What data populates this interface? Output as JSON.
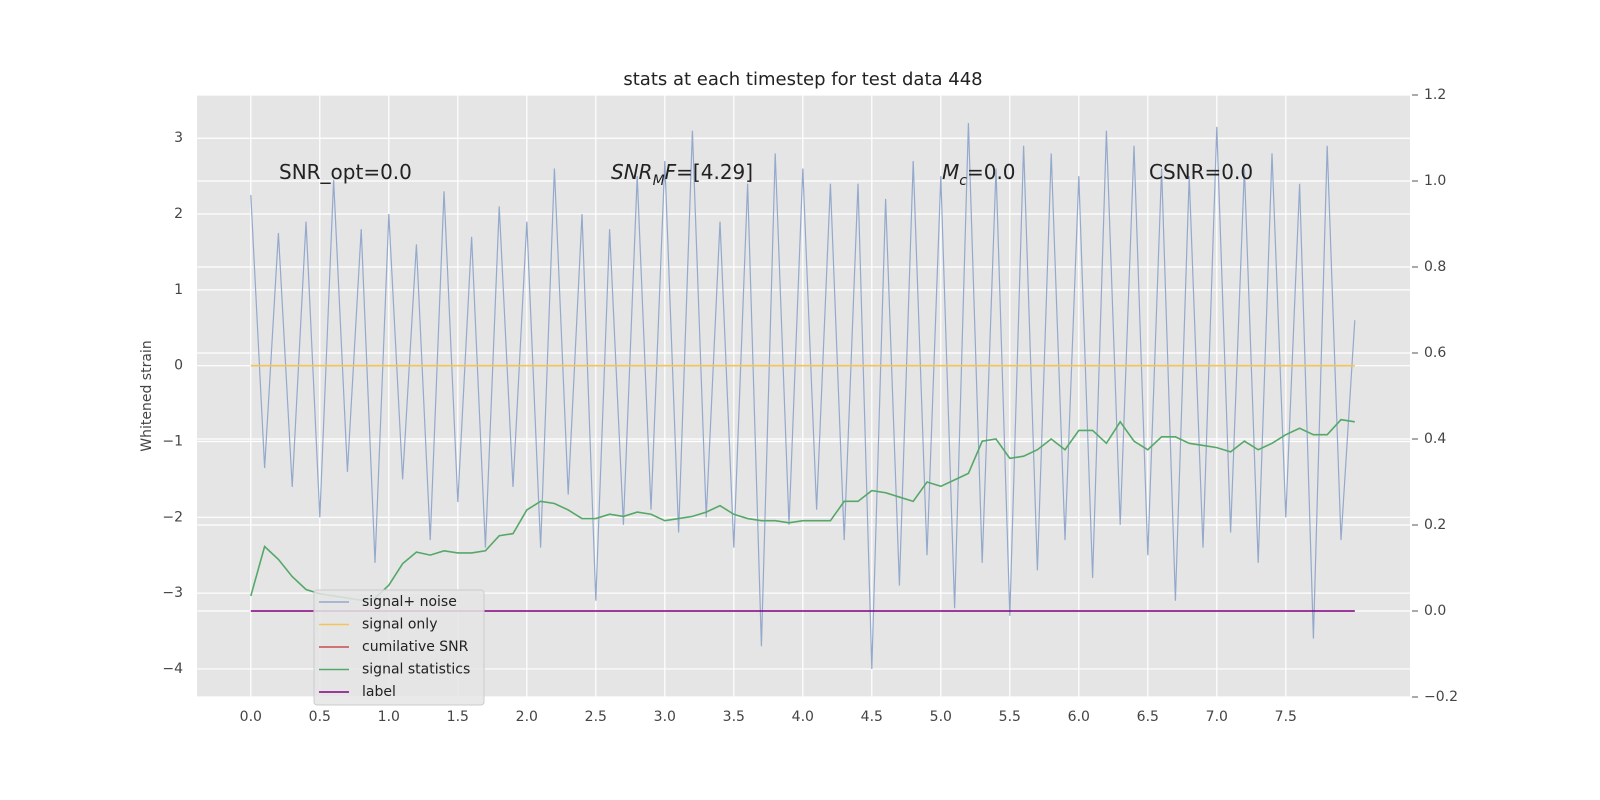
{
  "chart_data": {
    "type": "line",
    "title": "stats at each timestep for test data 448",
    "y_label": "Whitened strain",
    "grid": true,
    "legend": "lower left",
    "xlim": [
      -0.39,
      8.4
    ],
    "ylim": [
      -4.37,
      3.57
    ],
    "y2lim": [
      -0.2,
      1.2
    ],
    "xticks": [
      {
        "value": 0,
        "label": "0.0"
      },
      0.5,
      {
        "value": 1,
        "label": "1.0"
      },
      1.5,
      {
        "value": 2,
        "label": "2.0"
      },
      2.5,
      {
        "value": 3,
        "label": "3.0"
      },
      3.5,
      {
        "value": 4,
        "label": "4.0"
      },
      4.5,
      {
        "value": 5,
        "label": "5.0"
      },
      5.5,
      {
        "value": 6,
        "label": "6.0"
      },
      6.5,
      {
        "value": 7,
        "label": "7.0"
      },
      7.5
    ],
    "yticks": [
      {
        "value": -4,
        "label": "−4"
      },
      {
        "value": -3,
        "label": "−3"
      },
      {
        "value": -2,
        "label": "−2"
      },
      {
        "value": -1,
        "label": "−1"
      },
      0,
      1,
      2,
      3
    ],
    "y2ticks": [
      {
        "value": -0.2,
        "label": "−0.2"
      },
      {
        "value": 0,
        "label": "0.0"
      },
      0.2,
      0.4,
      0.6,
      0.8,
      {
        "value": 1,
        "label": "1.0"
      },
      1.2
    ],
    "annotations": [
      {
        "parts": [
          {
            "text": "SNR_opt=0.0"
          }
        ]
      },
      {
        "parts": [
          {
            "text": "SNR",
            "italic": true
          },
          {
            "text": "M",
            "italic": true,
            "sub": true
          },
          {
            "text": "F",
            "italic": true
          },
          {
            "text": "=[4.29]"
          }
        ]
      },
      {
        "parts": [
          {
            "text": "M",
            "italic": true
          },
          {
            "text": "c",
            "italic": true,
            "sub": true
          },
          {
            "text": "=0.0"
          }
        ]
      },
      {
        "parts": [
          {
            "text": "CSNR=0.0"
          }
        ]
      }
    ],
    "x": [
      0,
      0.1,
      0.2,
      0.3,
      0.4,
      0.5,
      0.6,
      0.7,
      0.8,
      0.9,
      1,
      1.1,
      1.2,
      1.3,
      1.4,
      1.5,
      1.6,
      1.7,
      1.8,
      1.9,
      2,
      2.1,
      2.2,
      2.3,
      2.4,
      2.5,
      2.6,
      2.7,
      2.8,
      2.9,
      3,
      3.1,
      3.2,
      3.3,
      3.4,
      3.5,
      3.6,
      3.7,
      3.8,
      3.9,
      4,
      4.1,
      4.2,
      4.3,
      4.4,
      4.5,
      4.6,
      4.7,
      4.8,
      4.9,
      5,
      5.1,
      5.2,
      5.3,
      5.4,
      5.5,
      5.6,
      5.7,
      5.8,
      5.9,
      6,
      6.1,
      6.2,
      6.3,
      6.4,
      6.5,
      6.6,
      6.7,
      6.8,
      6.9,
      7,
      7.1,
      7.2,
      7.3,
      7.4,
      7.5,
      7.6,
      7.7,
      7.8,
      7.9,
      8
    ],
    "series": [
      {
        "name": "signal+ noise",
        "color": "#94a9cc",
        "values": [
          2.25,
          -1.35,
          1.75,
          -1.6,
          1.9,
          -2.0,
          2.45,
          -1.4,
          1.8,
          -2.6,
          2.0,
          -1.5,
          1.6,
          -2.3,
          2.3,
          -1.8,
          1.7,
          -2.4,
          2.1,
          -1.6,
          1.9,
          -2.4,
          2.6,
          -1.7,
          2.0,
          -3.1,
          1.8,
          -2.1,
          2.5,
          -1.9,
          2.7,
          -2.2,
          3.1,
          -2.0,
          1.9,
          -2.4,
          2.4,
          -3.7,
          2.8,
          -2.1,
          2.6,
          -1.9,
          2.4,
          -2.3,
          2.4,
          -4.0,
          2.2,
          -2.9,
          2.7,
          -2.5,
          2.5,
          -3.2,
          3.2,
          -2.6,
          2.6,
          -3.3,
          2.9,
          -2.7,
          2.8,
          -2.3,
          2.5,
          -2.8,
          3.1,
          -2.1,
          2.9,
          -2.5,
          2.6,
          -3.1,
          2.5,
          -2.4,
          3.15,
          -2.2,
          2.6,
          -2.6,
          2.8,
          -2.0,
          2.4,
          -3.6,
          2.9,
          -2.3,
          0.6
        ]
      },
      {
        "name": "signal only",
        "color": "#f2c45a",
        "values": [
          0,
          0,
          0,
          0,
          0,
          0,
          0,
          0,
          0,
          0,
          0,
          0,
          0,
          0,
          0,
          0,
          0,
          0,
          0,
          0,
          0,
          0,
          0,
          0,
          0,
          0,
          0,
          0,
          0,
          0,
          0,
          0,
          0,
          0,
          0,
          0,
          0,
          0,
          0,
          0,
          0,
          0,
          0,
          0,
          0,
          0,
          0,
          0,
          0,
          0,
          0,
          0,
          0,
          0,
          0,
          0,
          0,
          0,
          0,
          0,
          0,
          0,
          0,
          0,
          0,
          0,
          0,
          0,
          0,
          0,
          0,
          0,
          0,
          0,
          0,
          0,
          0,
          0,
          0,
          0,
          0
        ]
      },
      {
        "name": "cumilative SNR",
        "color": "#c44e52"
      },
      {
        "name": "signal statistics",
        "color": "#55a868",
        "axis": "y2",
        "values": [
          0.035,
          0.15,
          0.12,
          0.08,
          0.05,
          0.04,
          0.035,
          0.03,
          0.025,
          0.03,
          0.06,
          0.11,
          0.137,
          0.13,
          0.14,
          0.135,
          0.135,
          0.14,
          0.175,
          0.18,
          0.235,
          0.255,
          0.25,
          0.235,
          0.215,
          0.215,
          0.225,
          0.22,
          0.23,
          0.225,
          0.21,
          0.215,
          0.22,
          0.23,
          0.245,
          0.225,
          0.215,
          0.21,
          0.21,
          0.205,
          0.21,
          0.21,
          0.21,
          0.255,
          0.255,
          0.28,
          0.275,
          0.265,
          0.255,
          0.3,
          0.29,
          0.305,
          0.32,
          0.395,
          0.4,
          0.355,
          0.36,
          0.375,
          0.4,
          0.375,
          0.42,
          0.42,
          0.39,
          0.44,
          0.395,
          0.375,
          0.405,
          0.405,
          0.39,
          0.385,
          0.38,
          0.37,
          0.395,
          0.375,
          0.39,
          0.41,
          0.425,
          0.41,
          0.41,
          0.445,
          0.44
        ]
      },
      {
        "name": "label",
        "color": "#800080",
        "axis": "y2",
        "values": [
          0,
          0,
          0,
          0,
          0,
          0,
          0,
          0,
          0,
          0,
          0,
          0,
          0,
          0,
          0,
          0,
          0,
          0,
          0,
          0,
          0,
          0,
          0,
          0,
          0,
          0,
          0,
          0,
          0,
          0,
          0,
          0,
          0,
          0,
          0,
          0,
          0,
          0,
          0,
          0,
          0,
          0,
          0,
          0,
          0,
          0,
          0,
          0,
          0,
          0,
          0,
          0,
          0,
          0,
          0,
          0,
          0,
          0,
          0,
          0,
          0,
          0,
          0,
          0,
          0,
          0,
          0,
          0,
          0,
          0,
          0,
          0,
          0,
          0,
          0,
          0,
          0,
          0,
          0,
          0,
          0
        ]
      }
    ]
  }
}
